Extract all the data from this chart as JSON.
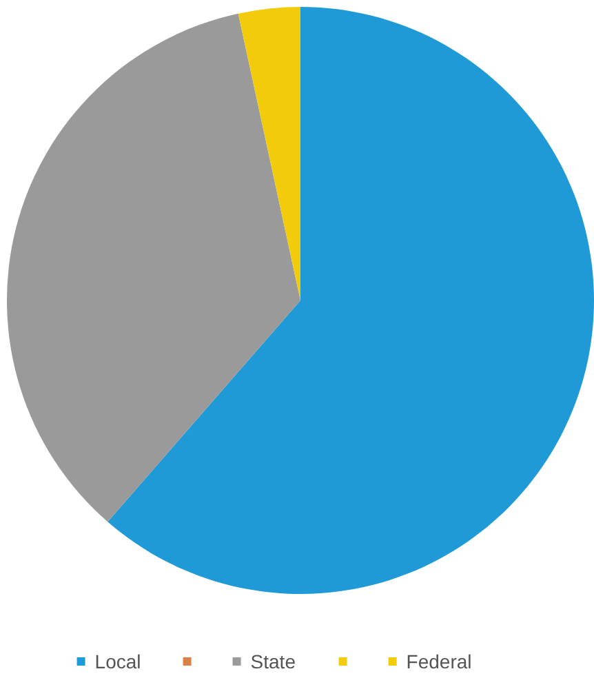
{
  "chart_data": {
    "type": "pie",
    "categories": [
      "Local",
      null,
      "State",
      null,
      "Federal"
    ],
    "values": [
      61.4,
      0,
      35.2,
      0,
      3.4
    ],
    "colors": [
      "#1f9ad6",
      "#d9804a",
      "#9a9a9a",
      "#f2cc0c",
      "#f2cc0c"
    ],
    "legend": "bottom"
  }
}
